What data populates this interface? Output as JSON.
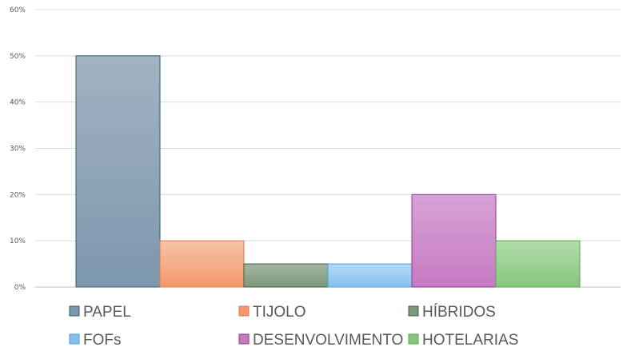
{
  "chart_data": {
    "type": "bar",
    "categories": [
      "PAPEL",
      "TIJOLO",
      "HÍBRIDOS",
      "FOFs",
      "DESENVOLVIMENTO",
      "HOTELARIAS"
    ],
    "values": [
      0.5,
      0.1,
      0.05,
      0.05,
      0.2,
      0.1
    ],
    "ylim": [
      0,
      0.6
    ],
    "yticks": [
      "0%",
      "10%",
      "20%",
      "30%",
      "40%",
      "50%",
      "60%"
    ],
    "grid": true,
    "legend": "bottom",
    "colors": [
      {
        "top": "#a2b2c1",
        "bottom": "#7d97ae",
        "stroke": "#2f5c6e"
      },
      {
        "top": "#f6c2a6",
        "bottom": "#f2986c",
        "stroke": "#e07a48"
      },
      {
        "top": "#a3b6a3",
        "bottom": "#7c977c",
        "stroke": "#3f5f3f"
      },
      {
        "top": "#b4daf5",
        "bottom": "#85c1ec",
        "stroke": "#4a9fd8"
      },
      {
        "top": "#d7a2d5",
        "bottom": "#c57ac2",
        "stroke": "#8b3a8a"
      },
      {
        "top": "#b1dcaa",
        "bottom": "#86c77d",
        "stroke": "#5aa24f"
      }
    ]
  }
}
